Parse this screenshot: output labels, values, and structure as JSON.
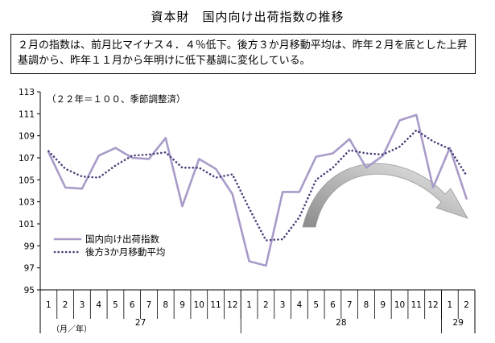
{
  "title": "資本財　国内向け出荷指数の推移",
  "summary": "２月の指数は、前月比マイナス４．４％低下。後方３か月移動平均は、昨年２月を底とした上昇基調から、昨年１１月から年明けに低下基調に変化している。",
  "chart_data": {
    "type": "line",
    "note": "（２２年＝１００、季節調整済）",
    "ylim": [
      95,
      113
    ],
    "yticks": [
      "95",
      "97",
      "99",
      "101",
      "103",
      "105",
      "107",
      "109",
      "111",
      "113"
    ],
    "categories": [
      "1",
      "2",
      "3",
      "4",
      "5",
      "6",
      "7",
      "8",
      "9",
      "10",
      "11",
      "12",
      "1",
      "2",
      "3",
      "4",
      "5",
      "6",
      "7",
      "8",
      "9",
      "10",
      "11",
      "12",
      "1",
      "2"
    ],
    "year_groups": [
      {
        "label": "27",
        "start": 0,
        "end": 11
      },
      {
        "label": "28",
        "start": 12,
        "end": 23
      },
      {
        "label": "29",
        "start": 24,
        "end": 25
      }
    ],
    "xlabel": "（月／年）",
    "grid": "none",
    "legend_position": "left-center",
    "series": [
      {
        "name": "国内向け出荷指数",
        "style": "solid",
        "color": "#a99bc8",
        "values": [
          107.5,
          104.3,
          104.2,
          107.2,
          107.9,
          107.0,
          106.9,
          108.8,
          102.6,
          106.9,
          106.0,
          103.7,
          97.6,
          97.2,
          103.9,
          103.9,
          107.1,
          107.4,
          108.7,
          106.1,
          107.2,
          110.4,
          110.9,
          104.3,
          107.9,
          103.3
        ]
      },
      {
        "name": "後方3か月移動平均",
        "style": "dotted",
        "color": "#4b3f7a",
        "values": [
          107.6,
          106.0,
          105.3,
          105.2,
          106.3,
          107.2,
          107.3,
          107.5,
          106.1,
          106.1,
          105.2,
          105.5,
          102.4,
          99.5,
          99.6,
          101.6,
          105.0,
          106.1,
          107.7,
          107.4,
          107.3,
          108.0,
          109.5,
          108.5,
          107.8,
          105.4
        ]
      }
    ],
    "arrow_color": "#a6a6a6"
  }
}
